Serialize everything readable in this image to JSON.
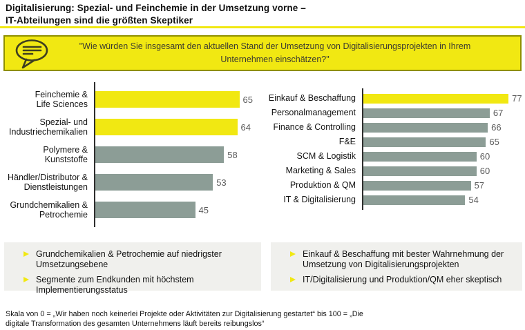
{
  "title": "Digitalisierung: Spezial- und Feinchemie in der Umsetzung vorne –\nIT-Abteilungen sind die größten Skeptiker",
  "banner": {
    "icon": "speech-bubble-icon",
    "quote": "\"Wie würden Sie insgesamt den aktuellen Stand der Umsetzung von Digitalisierungsprojekten in Ihrem Unternehmen einschätzen?\""
  },
  "chart_data": [
    {
      "type": "bar",
      "orientation": "horizontal",
      "title": "",
      "categories": [
        "Feinchemie &\nLife Sciences",
        "Spezial- und\nIndustriechemikalien",
        "Polymere &\nKunststoffe",
        "Händler/Distributor &\nDienstleistungen",
        "Grundchemikalien &\nPetrochemie"
      ],
      "values": [
        65,
        64,
        58,
        53,
        45
      ],
      "bar_colors": [
        "yellow",
        "yellow",
        "gray",
        "gray",
        "gray"
      ],
      "xlim": [
        0,
        71
      ],
      "value_labels": true,
      "grid": false,
      "legend": false
    },
    {
      "type": "bar",
      "orientation": "horizontal",
      "title": "",
      "categories": [
        "Einkauf & Beschaffung",
        "Personalmanagement",
        "Finance & Controlling",
        "F&E",
        "SCM & Logistik",
        "Marketing & Sales",
        "Produktion & QM",
        "IT & Digitalisierung"
      ],
      "values": [
        77,
        67,
        66,
        65,
        60,
        60,
        57,
        54
      ],
      "bar_colors": [
        "yellow",
        "gray",
        "gray",
        "gray",
        "gray",
        "gray",
        "gray",
        "gray"
      ],
      "xlim": [
        0,
        85
      ],
      "value_labels": true,
      "grid": false,
      "legend": false
    }
  ],
  "insights": [
    {
      "items": [
        "Grundchemikalien & Petrochemie auf niedrigster Umsetzungsebene",
        "Segmente zum Endkunden mit höchstem Implementierungsstatus"
      ]
    },
    {
      "items": [
        "Einkauf & Beschaffung mit bester Wahrnehmung der Umsetzung von Digitalisierungsprojekten",
        "IT/Digitalisierung und Produktion/QM eher skeptisch"
      ]
    }
  ],
  "footnote": "Skala von 0 = „Wir haben noch keinerlei Projekte oder Aktivitäten zur Digitalisierung gestartet“ bis 100 = „Die digitale Transformation des gesamten Unternehmens läuft bereits reibungslos“",
  "colors": {
    "yellow": "#F1E812",
    "gray": "#8C9D96",
    "banner_border": "#8F8F00",
    "axis": "#2E2E2E",
    "value_text": "#5A5A5A",
    "insight_bg": "#F0F0ED"
  }
}
